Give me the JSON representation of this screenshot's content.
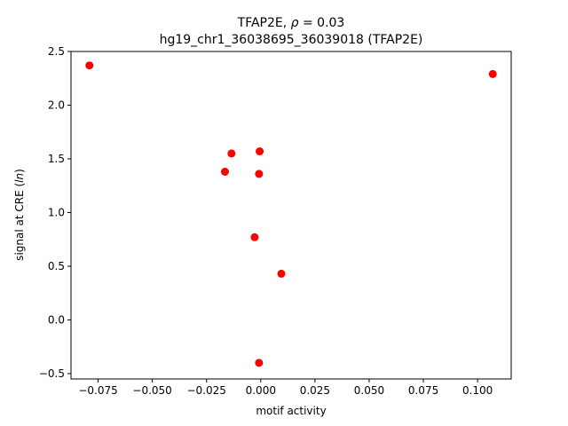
{
  "chart_data": {
    "type": "scatter",
    "title_line1": "TFAP2E, ρ = 0.03",
    "title_line2": "hg19_chr1_36038695_36039018 (TFAP2E)",
    "xlabel": "motif activity",
    "ylabel": "signal at CRE (ln)",
    "xlim": [
      -0.0875,
      0.1155
    ],
    "ylim": [
      -0.55,
      2.5
    ],
    "xticks": [
      -0.075,
      -0.05,
      -0.025,
      0.0,
      0.025,
      0.05,
      0.075,
      0.1
    ],
    "xtick_labels": [
      "−0.075",
      "−0.050",
      "−0.025",
      "0.000",
      "0.025",
      "0.050",
      "0.075",
      "0.100"
    ],
    "yticks": [
      -0.5,
      0.0,
      0.5,
      1.0,
      1.5,
      2.0,
      2.5
    ],
    "ytick_labels": [
      "−0.5",
      "0.0",
      "0.5",
      "1.0",
      "1.5",
      "2.0",
      "2.5"
    ],
    "point_color": "#ff0000",
    "grid": false,
    "points": [
      {
        "x": -0.079,
        "y": 2.37
      },
      {
        "x": 0.107,
        "y": 2.29
      },
      {
        "x": -0.0135,
        "y": 1.55
      },
      {
        "x": -0.0005,
        "y": 1.57
      },
      {
        "x": -0.0165,
        "y": 1.38
      },
      {
        "x": -0.0008,
        "y": 1.36
      },
      {
        "x": -0.0028,
        "y": 0.77
      },
      {
        "x": 0.0095,
        "y": 0.43
      },
      {
        "x": -0.0008,
        "y": -0.4
      }
    ]
  }
}
